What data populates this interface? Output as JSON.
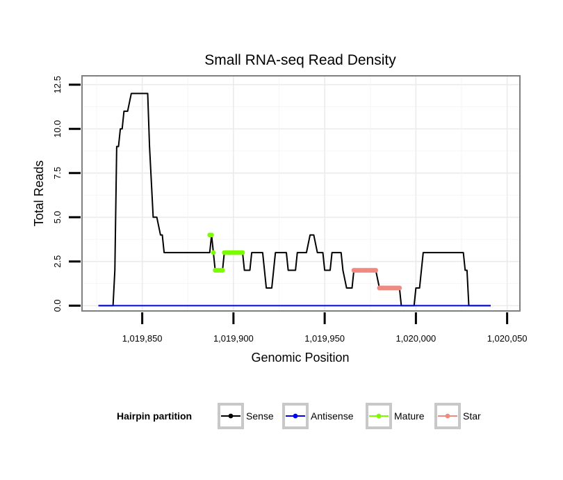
{
  "chart_data": {
    "type": "line",
    "title": "Small RNA-seq Read Density",
    "xlabel": "Genomic Position",
    "ylabel": "Total Reads",
    "xlim": [
      1019817,
      1020057
    ],
    "ylim": [
      -0.3,
      13.0
    ],
    "x_ticks": [
      1019850,
      1019900,
      1019950,
      1020000,
      1020050
    ],
    "x_tick_labels": [
      "1,019,850",
      "1,019,900",
      "1,019,950",
      "1,020,000",
      "1,020,050"
    ],
    "y_ticks": [
      0,
      2.5,
      5,
      7.5,
      10,
      12.5
    ],
    "y_tick_labels": [
      "0.0",
      "2.5",
      "5.0",
      "7.5",
      "10.0",
      "12.5"
    ],
    "grid": true,
    "legend_title": "Hairpin partition",
    "legend_position": "bottom",
    "series": [
      {
        "name": "Sense",
        "color": "#000000",
        "style": "line",
        "points": [
          [
            1019826,
            0
          ],
          [
            1019834,
            0
          ],
          [
            1019835,
            2
          ],
          [
            1019836,
            9
          ],
          [
            1019837,
            9
          ],
          [
            1019838,
            10
          ],
          [
            1019839,
            10
          ],
          [
            1019840,
            11
          ],
          [
            1019842,
            11
          ],
          [
            1019844,
            12
          ],
          [
            1019853,
            12
          ],
          [
            1019854,
            9
          ],
          [
            1019856,
            5
          ],
          [
            1019858,
            5
          ],
          [
            1019860,
            4
          ],
          [
            1019861,
            4
          ],
          [
            1019862,
            3
          ],
          [
            1019887,
            3
          ],
          [
            1019888,
            4
          ],
          [
            1019889,
            3
          ],
          [
            1019890,
            2
          ],
          [
            1019894,
            2
          ],
          [
            1019895,
            3
          ],
          [
            1019905,
            3
          ],
          [
            1019906,
            2
          ],
          [
            1019909,
            2
          ],
          [
            1019910,
            3
          ],
          [
            1019916,
            3
          ],
          [
            1019918,
            1
          ],
          [
            1019921,
            1
          ],
          [
            1019922,
            2
          ],
          [
            1019923,
            3
          ],
          [
            1019929,
            3
          ],
          [
            1019930,
            2
          ],
          [
            1019934,
            2
          ],
          [
            1019935,
            3
          ],
          [
            1019940,
            3
          ],
          [
            1019942,
            4
          ],
          [
            1019944,
            4
          ],
          [
            1019946,
            3
          ],
          [
            1019949,
            3
          ],
          [
            1019950,
            2
          ],
          [
            1019953,
            2
          ],
          [
            1019954,
            3
          ],
          [
            1019959,
            3
          ],
          [
            1019960,
            2
          ],
          [
            1019962,
            1
          ],
          [
            1019965,
            1
          ],
          [
            1019966,
            2
          ],
          [
            1019978,
            2
          ],
          [
            1019980,
            1
          ],
          [
            1019991,
            1
          ],
          [
            1019992,
            0
          ],
          [
            1019999,
            0
          ],
          [
            1020000,
            1
          ],
          [
            1020002,
            1
          ],
          [
            1020004,
            3
          ],
          [
            1020026,
            3
          ],
          [
            1020027,
            2
          ],
          [
            1020028,
            2
          ],
          [
            1020029,
            0
          ],
          [
            1020041,
            0
          ]
        ]
      },
      {
        "name": "Antisense",
        "color": "#0000ff",
        "style": "line",
        "points": [
          [
            1019826,
            0
          ],
          [
            1020041,
            0
          ]
        ]
      },
      {
        "name": "Mature",
        "color": "#7cfc00",
        "style": "points",
        "points": [
          [
            1019887,
            4
          ],
          [
            1019888,
            4
          ],
          [
            1019889,
            3
          ],
          [
            1019890,
            2
          ],
          [
            1019891,
            2
          ],
          [
            1019892,
            2
          ],
          [
            1019893,
            2
          ],
          [
            1019894,
            2
          ],
          [
            1019895,
            3
          ],
          [
            1019896,
            3
          ],
          [
            1019897,
            3
          ],
          [
            1019898,
            3
          ],
          [
            1019899,
            3
          ],
          [
            1019900,
            3
          ],
          [
            1019901,
            3
          ],
          [
            1019902,
            3
          ],
          [
            1019903,
            3
          ],
          [
            1019904,
            3
          ],
          [
            1019905,
            3
          ]
        ]
      },
      {
        "name": "Star",
        "color": "#f08a80",
        "style": "points",
        "points": [
          [
            1019966,
            2
          ],
          [
            1019967,
            2
          ],
          [
            1019968,
            2
          ],
          [
            1019969,
            2
          ],
          [
            1019970,
            2
          ],
          [
            1019971,
            2
          ],
          [
            1019972,
            2
          ],
          [
            1019973,
            2
          ],
          [
            1019974,
            2
          ],
          [
            1019975,
            2
          ],
          [
            1019976,
            2
          ],
          [
            1019977,
            2
          ],
          [
            1019978,
            2
          ],
          [
            1019980,
            1
          ],
          [
            1019981,
            1
          ],
          [
            1019982,
            1
          ],
          [
            1019983,
            1
          ],
          [
            1019984,
            1
          ],
          [
            1019985,
            1
          ],
          [
            1019986,
            1
          ],
          [
            1019987,
            1
          ],
          [
            1019988,
            1
          ],
          [
            1019989,
            1
          ],
          [
            1019990,
            1
          ],
          [
            1019991,
            1
          ]
        ]
      }
    ]
  }
}
